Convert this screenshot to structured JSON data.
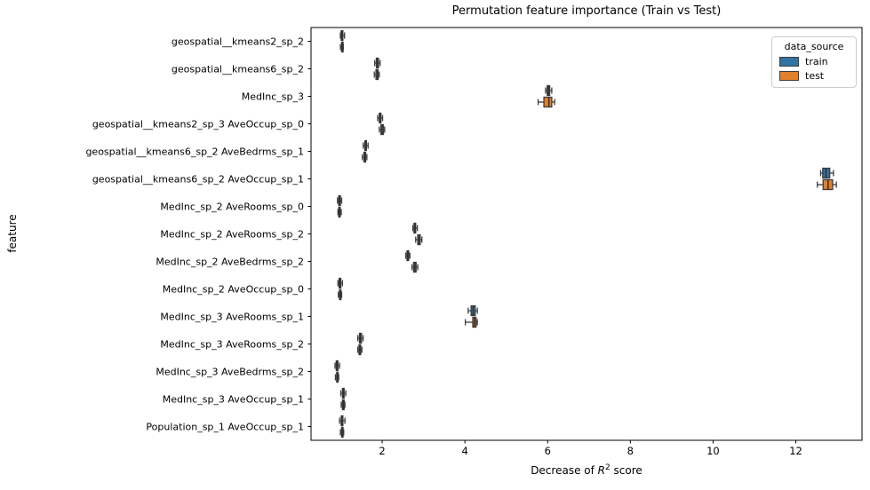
{
  "figure": {
    "title": "Permutation feature importance (Train vs Test)",
    "xlabel": {
      "prefix": "Decrease of ",
      "math": "R",
      "sup": "2",
      "suffix": " score"
    },
    "ylabel": "feature"
  },
  "legend": {
    "title": "data_source",
    "entries": [
      {
        "label": "train",
        "color": "#3274a1"
      },
      {
        "label": "test",
        "color": "#e1812c"
      }
    ]
  },
  "chart_data": {
    "type": "boxplot",
    "orientation": "horizontal",
    "title": "Permutation feature importance (Train vs Test)",
    "xlabel": "Decrease of R² score",
    "ylabel": "feature",
    "grid": false,
    "legend_position": "upper right",
    "legend_title": "data_source",
    "xlim": [
      0.28,
      13.6
    ],
    "xticks": [
      2,
      4,
      6,
      8,
      10,
      12
    ],
    "box_edge_color": "#3c3c3c",
    "median_color": "#2e2e2e",
    "categories": [
      "geospatial__kmeans2_sp_2",
      "geospatial__kmeans6_sp_2",
      "MedInc_sp_3",
      "geospatial__kmeans2_sp_3 AveOccup_sp_0",
      "geospatial__kmeans6_sp_2 AveBedrms_sp_1",
      "geospatial__kmeans6_sp_2 AveOccup_sp_1",
      "MedInc_sp_2 AveRooms_sp_0",
      "MedInc_sp_2 AveRooms_sp_2",
      "MedInc_sp_2 AveBedrms_sp_2",
      "MedInc_sp_2 AveOccup_sp_0",
      "MedInc_sp_3 AveRooms_sp_1",
      "MedInc_sp_3 AveRooms_sp_2",
      "MedInc_sp_3 AveBedrms_sp_2",
      "MedInc_sp_3 AveOccup_sp_1",
      "Population_sp_1 AveOccup_sp_1"
    ],
    "series": [
      {
        "name": "train",
        "color": "#3274a1",
        "boxes": [
          [
            0.99,
            1.01,
            1.03,
            1.05,
            1.09
          ],
          [
            1.82,
            1.86,
            1.89,
            1.91,
            1.95
          ],
          [
            5.95,
            5.99,
            6.02,
            6.05,
            6.1
          ],
          [
            1.89,
            1.93,
            1.95,
            1.97,
            2.01
          ],
          [
            1.54,
            1.58,
            1.6,
            1.62,
            1.66
          ],
          [
            12.6,
            12.65,
            12.73,
            12.82,
            12.91
          ],
          [
            0.92,
            0.95,
            0.97,
            0.99,
            1.02
          ],
          [
            2.74,
            2.77,
            2.79,
            2.81,
            2.85
          ],
          [
            2.57,
            2.6,
            2.62,
            2.64,
            2.67
          ],
          [
            0.93,
            0.96,
            0.98,
            1.0,
            1.04
          ],
          [
            4.08,
            4.15,
            4.2,
            4.25,
            4.3
          ],
          [
            1.41,
            1.45,
            1.47,
            1.5,
            1.54
          ],
          [
            0.86,
            0.89,
            0.91,
            0.93,
            0.97
          ],
          [
            1.0,
            1.04,
            1.06,
            1.08,
            1.12
          ],
          [
            0.97,
            1.01,
            1.03,
            1.05,
            1.1
          ]
        ]
      },
      {
        "name": "test",
        "color": "#e1812c",
        "boxes": [
          [
            0.99,
            1.02,
            1.03,
            1.04,
            1.06
          ],
          [
            1.81,
            1.85,
            1.88,
            1.9,
            1.93
          ],
          [
            5.77,
            5.91,
            6.03,
            6.1,
            6.17
          ],
          [
            1.93,
            1.97,
            2.0,
            2.03,
            2.06
          ],
          [
            1.52,
            1.56,
            1.58,
            1.6,
            1.63
          ],
          [
            12.52,
            12.66,
            12.78,
            12.89,
            12.98
          ],
          [
            0.93,
            0.95,
            0.97,
            0.98,
            1.01
          ],
          [
            2.81,
            2.86,
            2.89,
            2.92,
            2.96
          ],
          [
            2.72,
            2.76,
            2.79,
            2.82,
            2.86
          ],
          [
            0.94,
            0.97,
            0.98,
            1.0,
            1.02
          ],
          [
            4.01,
            4.19,
            4.23,
            4.27,
            4.3
          ],
          [
            1.41,
            1.44,
            1.46,
            1.48,
            1.51
          ],
          [
            0.87,
            0.9,
            0.91,
            0.93,
            0.95
          ],
          [
            1.01,
            1.04,
            1.06,
            1.08,
            1.1
          ],
          [
            0.99,
            1.02,
            1.03,
            1.05,
            1.07
          ]
        ]
      }
    ]
  }
}
